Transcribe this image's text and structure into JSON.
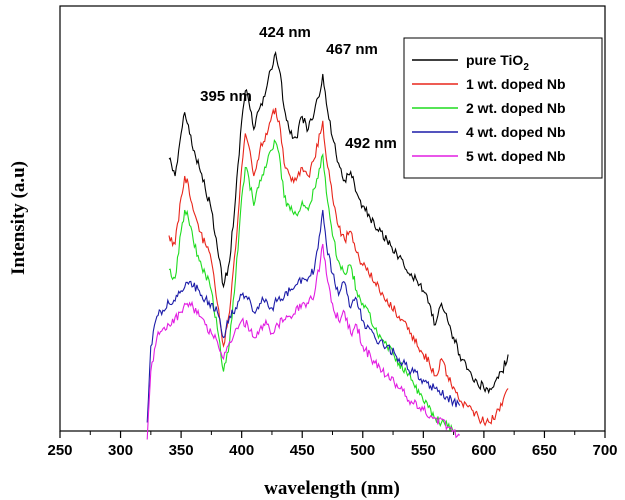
{
  "chart_data": {
    "type": "line",
    "title": "",
    "xlabel": "wavelength (nm)",
    "ylabel": "Intensity (a.u)",
    "xlim": [
      250,
      700
    ],
    "ylim": [
      0,
      100
    ],
    "xticks": [
      250,
      300,
      350,
      400,
      450,
      500,
      550,
      600,
      650,
      700
    ],
    "yticks_shown": false,
    "grid": false,
    "legend_position": "top-right",
    "annotations": [
      {
        "text": "395 nm",
        "x": 395
      },
      {
        "text": "424 nm",
        "x": 424
      },
      {
        "text": "467 nm",
        "x": 467
      },
      {
        "text": "492 nm",
        "x": 492
      }
    ],
    "series": [
      {
        "name": "pure TiO2",
        "legend_main": "pure TiO",
        "legend_sub": "2",
        "color": "#000000",
        "x": [
          340,
          345,
          350,
          353,
          356,
          360,
          365,
          370,
          375,
          380,
          385,
          390,
          395,
          400,
          403,
          405,
          410,
          415,
          420,
          424,
          428,
          432,
          435,
          440,
          445,
          450,
          455,
          460,
          465,
          467,
          470,
          475,
          480,
          485,
          490,
          495,
          500,
          505,
          510,
          520,
          530,
          540,
          550,
          555,
          560,
          565,
          570,
          580,
          590,
          600,
          605,
          610,
          615,
          620
        ],
        "y": [
          64,
          60,
          70,
          75,
          72,
          66,
          62,
          57,
          52,
          43,
          34,
          40,
          55,
          73,
          80,
          79,
          71,
          76,
          80,
          85,
          89,
          84,
          76,
          70,
          69,
          74,
          71,
          75,
          80,
          84,
          77,
          69,
          63,
          59,
          61,
          56,
          53,
          51,
          48,
          45,
          41,
          37,
          33,
          30,
          25,
          30,
          26,
          18,
          13,
          10,
          10,
          12,
          14,
          18
        ]
      },
      {
        "name": "1 wt. doped Nb",
        "legend_main": "1 wt. doped Nb",
        "color": "#e8261c",
        "x": [
          340,
          345,
          350,
          353,
          356,
          360,
          365,
          370,
          375,
          380,
          385,
          390,
          395,
          400,
          403,
          405,
          410,
          415,
          420,
          424,
          428,
          432,
          435,
          440,
          445,
          450,
          455,
          460,
          465,
          467,
          470,
          475,
          480,
          485,
          490,
          495,
          500,
          505,
          510,
          520,
          530,
          540,
          550,
          555,
          560,
          565,
          570,
          580,
          590,
          600,
          605,
          610,
          615,
          620
        ],
        "y": [
          46,
          44,
          55,
          60,
          58,
          52,
          47,
          44,
          40,
          30,
          20,
          28,
          43,
          62,
          70,
          68,
          60,
          66,
          70,
          73,
          76,
          71,
          63,
          60,
          59,
          62,
          60,
          64,
          70,
          73,
          64,
          55,
          48,
          45,
          47,
          42,
          39,
          37,
          35,
          31,
          27,
          23,
          18,
          16,
          13,
          17,
          13,
          7,
          5,
          2,
          2,
          4,
          6,
          10
        ]
      },
      {
        "name": "2 wt. doped Nb",
        "legend_main": "2 wt. doped Nb",
        "color": "#1fdc1f",
        "x": [
          340,
          345,
          350,
          353,
          356,
          360,
          365,
          370,
          375,
          380,
          385,
          390,
          395,
          400,
          403,
          405,
          410,
          415,
          420,
          424,
          428,
          432,
          435,
          440,
          445,
          450,
          455,
          460,
          465,
          467,
          470,
          475,
          480,
          485,
          490,
          495,
          500,
          505,
          510,
          520,
          530,
          540,
          550,
          560,
          565,
          570,
          575
        ],
        "y": [
          38,
          36,
          47,
          52,
          50,
          45,
          40,
          37,
          33,
          24,
          14,
          21,
          36,
          55,
          62,
          61,
          53,
          59,
          62,
          66,
          68,
          63,
          55,
          52,
          51,
          54,
          52,
          57,
          62,
          65,
          56,
          46,
          40,
          37,
          39,
          33,
          30,
          28,
          24,
          20,
          16,
          12,
          7,
          3,
          2,
          1,
          0
        ]
      },
      {
        "name": "4 wt. doped Nb",
        "legend_main": "4 wt. doped Nb",
        "color": "#1c1ca8",
        "x": [
          322,
          325,
          330,
          340,
          350,
          355,
          360,
          365,
          370,
          375,
          380,
          385,
          390,
          395,
          400,
          405,
          410,
          415,
          420,
          425,
          430,
          440,
          450,
          455,
          460,
          465,
          467,
          470,
          475,
          480,
          485,
          490,
          495,
          500,
          510,
          520,
          530,
          540,
          550,
          560,
          570,
          575,
          580
        ],
        "y": [
          2,
          20,
          27,
          30,
          33,
          35,
          34,
          33,
          31,
          30,
          28,
          22,
          27,
          29,
          32,
          31,
          28,
          30,
          31,
          29,
          31,
          33,
          36,
          36,
          38,
          47,
          52,
          44,
          37,
          32,
          35,
          29,
          31,
          26,
          22,
          20,
          17,
          14,
          12,
          10,
          8,
          7,
          6
        ]
      },
      {
        "name": "5 wt. doped Nb",
        "legend_main": "5 wt. doped Nb",
        "color": "#e21ee2",
        "x": [
          322,
          325,
          330,
          340,
          350,
          355,
          360,
          365,
          370,
          375,
          380,
          385,
          390,
          395,
          400,
          405,
          410,
          415,
          420,
          425,
          430,
          440,
          450,
          455,
          460,
          465,
          467,
          470,
          475,
          480,
          485,
          490,
          495,
          500,
          510,
          520,
          530,
          540,
          550,
          560,
          570,
          575,
          580
        ],
        "y": [
          -2,
          14,
          22,
          25,
          28,
          30,
          29,
          27,
          25,
          23,
          21,
          17,
          21,
          24,
          26,
          25,
          22,
          24,
          26,
          23,
          25,
          27,
          30,
          30,
          32,
          40,
          44,
          37,
          30,
          26,
          28,
          23,
          25,
          20,
          16,
          13,
          10,
          7,
          5,
          3,
          1,
          0,
          -1
        ]
      }
    ]
  }
}
